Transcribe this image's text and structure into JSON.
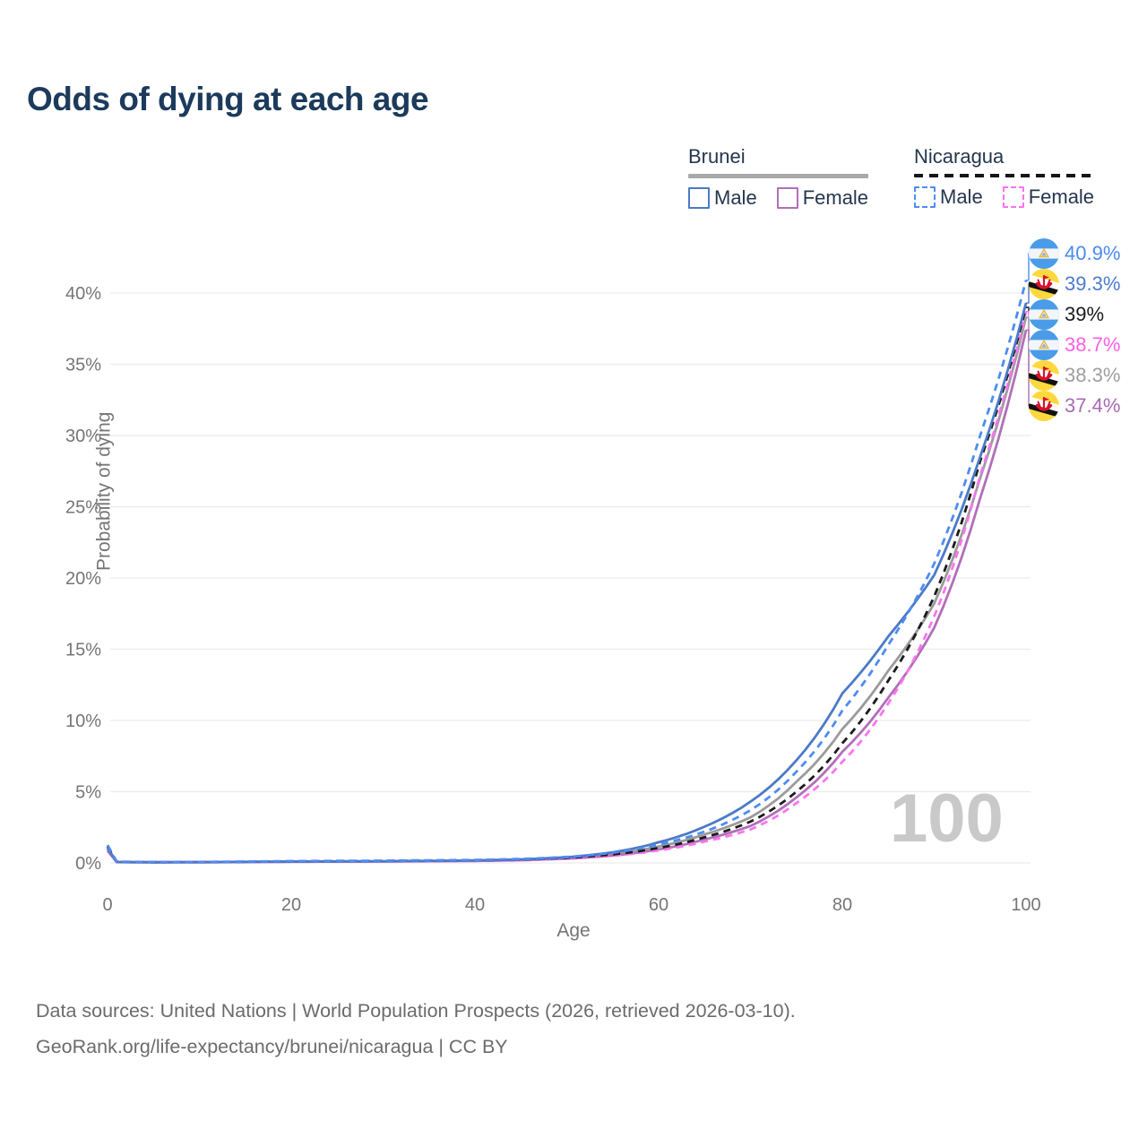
{
  "title": "Odds of dying at each age",
  "legend": {
    "groups": [
      {
        "name": "Brunei",
        "line_style": "solid",
        "underline_color": "#a9a9a9",
        "items": [
          {
            "label": "Male",
            "color": "#4b7ac6"
          },
          {
            "label": "Female",
            "color": "#b16fb9"
          }
        ]
      },
      {
        "name": "Nicaragua",
        "line_style": "dashed",
        "underline_color": "#161616",
        "items": [
          {
            "label": "Male",
            "color": "#4d8cf5"
          },
          {
            "label": "Female",
            "color": "#fb74ef"
          }
        ]
      }
    ]
  },
  "watermark": "100",
  "footer": {
    "line1": "Data sources: United Nations | World Population Prospects (2026, retrieved 2026-03-10).",
    "line2": "GeoRank.org/life-expectancy/brunei/nicaragua | CC BY"
  },
  "chart_data": {
    "type": "line",
    "title": "Odds of dying at each age",
    "xlabel": "Age",
    "ylabel": "Probability of dying",
    "xlim": [
      0,
      100
    ],
    "ylim": [
      0,
      43
    ],
    "grid": true,
    "legend_position": "top-right",
    "x_ticks": [
      0,
      20,
      40,
      60,
      80,
      100
    ],
    "y_tick_values": [
      0,
      5,
      10,
      15,
      20,
      25,
      30,
      35,
      40
    ],
    "y_tick_labels": [
      "0%",
      "5%",
      "10%",
      "15%",
      "20%",
      "25%",
      "30%",
      "35%",
      "40%"
    ],
    "x": [
      0,
      1,
      5,
      10,
      20,
      30,
      40,
      45,
      50,
      55,
      60,
      65,
      70,
      75,
      80,
      85,
      90,
      95,
      100
    ],
    "series": [
      {
        "name": "Brunei",
        "country": "Brunei",
        "sex": "Both",
        "color": "#9b9b9b",
        "dashed": false,
        "flag": "brunei",
        "end_label": "38.3%",
        "label_color": "#9e9e9e",
        "values": [
          0.95,
          0.06,
          0.045,
          0.05,
          0.09,
          0.11,
          0.16,
          0.22,
          0.35,
          0.62,
          1.15,
          2.0,
          3.2,
          5.7,
          9.4,
          13.5,
          18.2,
          27.0,
          38.3
        ]
      },
      {
        "name": "Brunei Female",
        "country": "Brunei",
        "sex": "Female",
        "color": "#b16fb9",
        "dashed": false,
        "flag": "brunei",
        "end_label": "37.4%",
        "label_color": "#a86bb4",
        "values": [
          0.85,
          0.055,
          0.04,
          0.045,
          0.08,
          0.1,
          0.14,
          0.19,
          0.3,
          0.52,
          0.95,
          1.65,
          2.6,
          4.6,
          7.8,
          11.6,
          16.5,
          25.6,
          37.4
        ]
      },
      {
        "name": "Nicaragua Female",
        "country": "Nicaragua",
        "sex": "Female",
        "color": "#fb74ef",
        "dashed": true,
        "flag": "nicaragua",
        "end_label": "38.7%",
        "label_color": "#fb5fe6",
        "values": [
          1.05,
          0.07,
          0.045,
          0.05,
          0.09,
          0.11,
          0.15,
          0.2,
          0.31,
          0.5,
          0.88,
          1.5,
          2.35,
          4.2,
          7.1,
          11.2,
          17.3,
          27.2,
          38.7
        ]
      },
      {
        "name": "Nicaragua",
        "country": "Nicaragua",
        "sex": "Both",
        "color": "#1b1b1b",
        "dashed": true,
        "flag": "nicaragua",
        "end_label": "39%",
        "label_color": "#1b1b1b",
        "values": [
          1.15,
          0.08,
          0.05,
          0.06,
          0.11,
          0.14,
          0.18,
          0.24,
          0.36,
          0.6,
          1.05,
          1.8,
          2.9,
          5.0,
          8.4,
          12.8,
          18.7,
          28.2,
          39.0
        ]
      },
      {
        "name": "Brunei Male",
        "country": "Brunei",
        "sex": "Male",
        "color": "#4b7ac6",
        "dashed": false,
        "flag": "brunei",
        "end_label": "39.3%",
        "label_color": "#4a7ccd",
        "values": [
          1.05,
          0.07,
          0.05,
          0.06,
          0.1,
          0.12,
          0.18,
          0.25,
          0.4,
          0.75,
          1.45,
          2.55,
          4.3,
          7.2,
          11.9,
          15.9,
          20.2,
          28.5,
          39.3
        ]
      },
      {
        "name": "Nicaragua Male",
        "country": "Nicaragua",
        "sex": "Male",
        "color": "#4d8cf5",
        "dashed": true,
        "flag": "nicaragua",
        "end_label": "40.9%",
        "label_color": "#4a8af0",
        "values": [
          1.25,
          0.09,
          0.06,
          0.07,
          0.13,
          0.16,
          0.21,
          0.28,
          0.42,
          0.72,
          1.3,
          2.2,
          3.7,
          6.4,
          10.7,
          15.3,
          21.0,
          30.0,
          40.9
        ]
      }
    ]
  }
}
